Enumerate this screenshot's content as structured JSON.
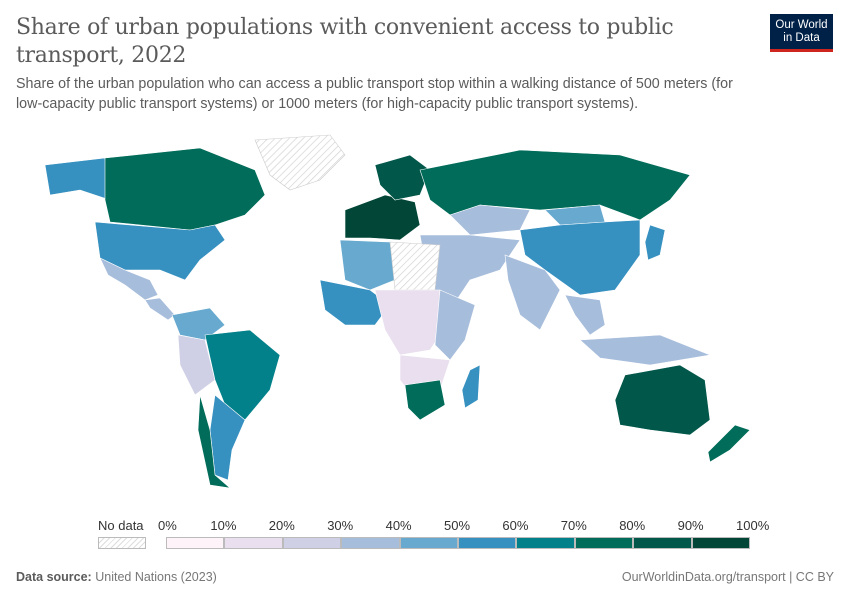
{
  "header": {
    "title": "Share of urban populations with convenient access to public transport, 2022",
    "subtitle": "Share of the urban population who can access a public transport stop within a walking distance of 500 meters (for low-capacity public transport systems) or 1000 meters (for high-capacity public transport systems).",
    "logo_line1": "Our World",
    "logo_line2": "in Data"
  },
  "legend": {
    "no_data_label": "No data",
    "ticks": [
      "0%",
      "10%",
      "20%",
      "30%",
      "40%",
      "50%",
      "60%",
      "70%",
      "80%",
      "90%",
      "100%"
    ],
    "colors": [
      "#fdf3f9",
      "#e9dfee",
      "#cfd0e6",
      "#a7bddc",
      "#67a9cf",
      "#3690c0",
      "#02818a",
      "#016c59",
      "#01574a",
      "#014636"
    ],
    "no_data_color": "#ececec"
  },
  "map": {
    "regions": [
      {
        "name": "greenland",
        "value": null
      },
      {
        "name": "alaska",
        "value": 55
      },
      {
        "name": "canada",
        "value": 75
      },
      {
        "name": "usa",
        "value": 55
      },
      {
        "name": "mexico",
        "value": 35
      },
      {
        "name": "central-america",
        "value": 30
      },
      {
        "name": "colombia-venezuela",
        "value": 45
      },
      {
        "name": "peru-bolivia",
        "value": 25
      },
      {
        "name": "brazil",
        "value": 65
      },
      {
        "name": "argentina",
        "value": 55
      },
      {
        "name": "chile",
        "value": 75
      },
      {
        "name": "western-europe",
        "value": 90
      },
      {
        "name": "scandinavia",
        "value": 85
      },
      {
        "name": "russia",
        "value": 75
      },
      {
        "name": "kazakhstan",
        "value": 35
      },
      {
        "name": "mongolia",
        "value": 45
      },
      {
        "name": "china",
        "value": 55
      },
      {
        "name": "japan",
        "value": 55
      },
      {
        "name": "middle-east",
        "value": 35
      },
      {
        "name": "india",
        "value": 35
      },
      {
        "name": "southeast-asia",
        "value": 30
      },
      {
        "name": "indonesia",
        "value": 35
      },
      {
        "name": "north-africa",
        "value": 45
      },
      {
        "name": "sahara-no-data",
        "value": null
      },
      {
        "name": "west-africa",
        "value": 55
      },
      {
        "name": "central-africa",
        "value": 15
      },
      {
        "name": "east-africa",
        "value": 35
      },
      {
        "name": "southern-africa",
        "value": 15
      },
      {
        "name": "south-africa",
        "value": 75
      },
      {
        "name": "madagascar",
        "value": 55
      },
      {
        "name": "australia",
        "value": 80
      },
      {
        "name": "new-zealand",
        "value": 75
      }
    ]
  },
  "footer": {
    "source_label": "Data source:",
    "source": "United Nations (2023)",
    "url": "OurWorldinData.org/transport | CC BY"
  }
}
